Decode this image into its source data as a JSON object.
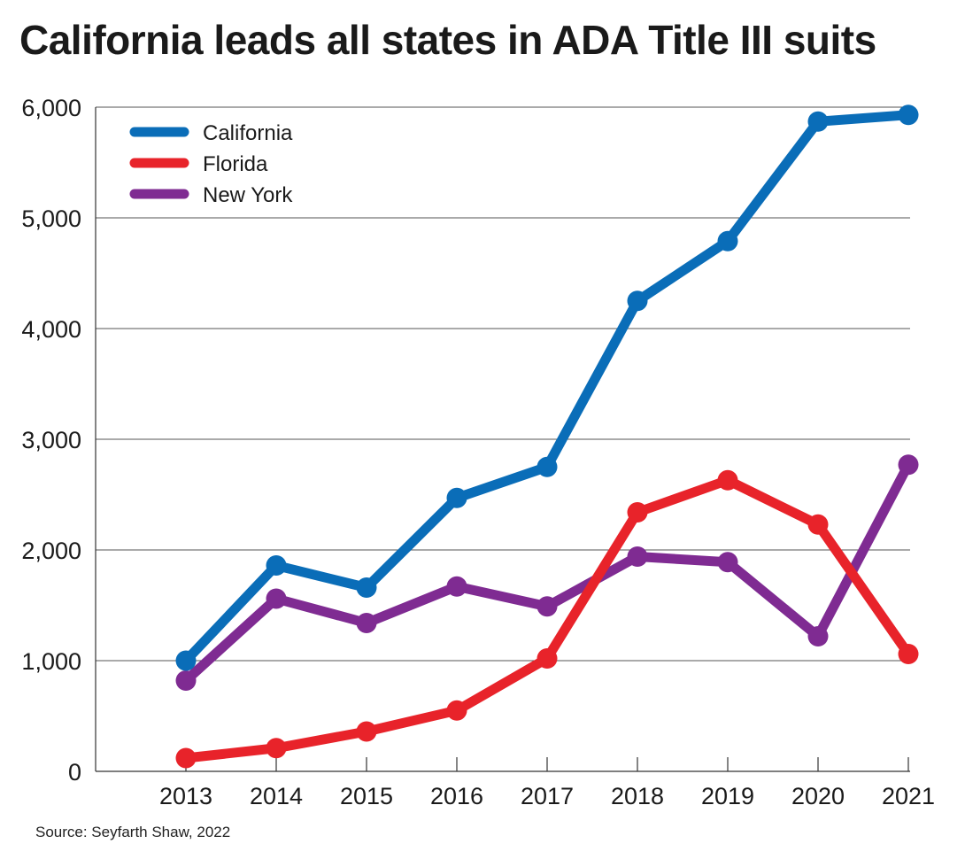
{
  "title": "California leads all states in ADA Title III suits",
  "source": "Source: Seyfarth Shaw, 2022",
  "chart_data": {
    "type": "line",
    "title": "California leads all states in ADA Title III suits",
    "xlabel": "",
    "ylabel": "",
    "x": [
      "2013",
      "2014",
      "2015",
      "2016",
      "2017",
      "2018",
      "2019",
      "2020",
      "2021"
    ],
    "yticks": [
      "0",
      "1,000",
      "2,000",
      "3,000",
      "4,000",
      "5,000",
      "6,000"
    ],
    "ylim": [
      0,
      6000
    ],
    "grid": "horizontal",
    "legend_position": "top-left",
    "series": [
      {
        "name": "California",
        "color": "#0a6db8",
        "values": [
          1000,
          1860,
          1660,
          2470,
          2750,
          4250,
          4790,
          5870,
          5930
        ]
      },
      {
        "name": "Florida",
        "color": "#e8232a",
        "values": [
          120,
          210,
          360,
          550,
          1020,
          2340,
          2630,
          2230,
          1060
        ]
      },
      {
        "name": "New York",
        "color": "#7f2b92",
        "values": [
          820,
          1560,
          1340,
          1670,
          1490,
          1940,
          1890,
          1220,
          2770
        ]
      }
    ]
  }
}
